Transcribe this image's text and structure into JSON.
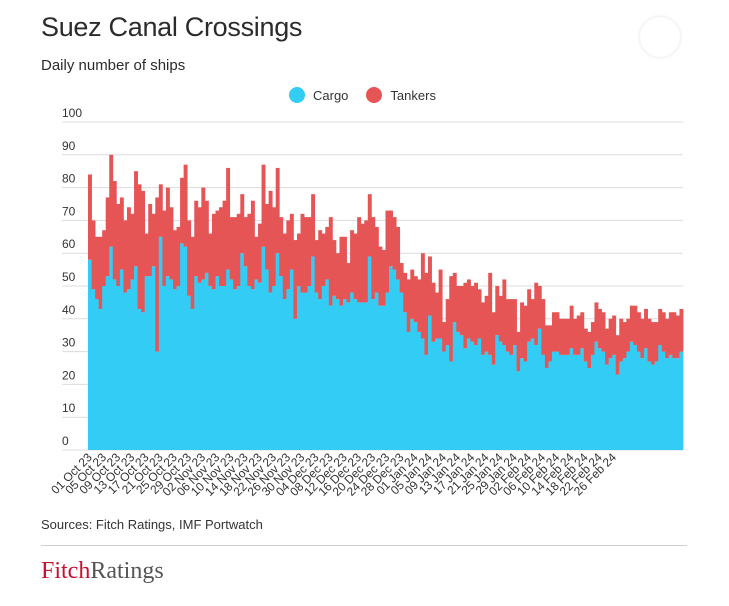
{
  "title": "Suez Canal Crossings",
  "subtitle": "Daily number of ships",
  "legend": [
    {
      "name": "Cargo",
      "color": "#33ccf5"
    },
    {
      "name": "Tankers",
      "color": "#e65555"
    }
  ],
  "source": "Sources: Fitch Ratings, IMF Portwatch",
  "logo": {
    "part1": "Fitch",
    "part2": "Ratings"
  },
  "chart_data": {
    "type": "bar",
    "stacked": true,
    "start_date": "2023-10-01",
    "end_date": "2024-02-26",
    "ylim": [
      0,
      100
    ],
    "yticks": [
      0,
      10,
      20,
      30,
      40,
      50,
      60,
      70,
      80,
      90,
      100
    ],
    "xticks": [
      "01 Oct 23",
      "05 Oct 23",
      "09 Oct 23",
      "13 Oct 23",
      "17 Oct 23",
      "21 Oct 23",
      "25 Oct 23",
      "29 Oct 23",
      "02 Nov 23",
      "06 Nov 23",
      "10 Nov 23",
      "14 Nov 23",
      "18 Nov 23",
      "22 Nov 23",
      "26 Nov 23",
      "30 Nov 23",
      "04 Dec 23",
      "08 Dec 23",
      "12 Dec 23",
      "16 Dec 23",
      "20 Dec 23",
      "24 Dec 23",
      "28 Dec 23",
      "01 Jan 24",
      "05 Jan 24",
      "09 Jan 24",
      "13 Jan 24",
      "17 Jan 24",
      "21 Jan 24",
      "25 Jan 24",
      "29 Jan 24",
      "02 Feb 24",
      "06 Feb 24",
      "10 Feb 24",
      "14 Feb 24",
      "18 Feb 24",
      "22 Feb 24",
      "26 Feb 24"
    ],
    "grid": true,
    "legend_position": "top-center",
    "series": [
      {
        "name": "Cargo",
        "color": "#33ccf5",
        "values": [
          58,
          49,
          46,
          43,
          50,
          53,
          62,
          52,
          50,
          55,
          48,
          49,
          52,
          56,
          43,
          42,
          53,
          53,
          56,
          30,
          65,
          50,
          53,
          52,
          49,
          50,
          63,
          62,
          47,
          43,
          53,
          51,
          52,
          54,
          50,
          49,
          53,
          50,
          50,
          55,
          52,
          49,
          50,
          60,
          56,
          50,
          49,
          52,
          51,
          62,
          55,
          48,
          50,
          60,
          53,
          46,
          49,
          55,
          40,
          50,
          48,
          48,
          50,
          59,
          48,
          46,
          50,
          52,
          44,
          47,
          46,
          44,
          46,
          45,
          48,
          46,
          45,
          45,
          45,
          59,
          46,
          48,
          44,
          44,
          48,
          56,
          55,
          52,
          48,
          42,
          36,
          40,
          39,
          36,
          34,
          29,
          41,
          33,
          34,
          34,
          30,
          32,
          27,
          39,
          36,
          35,
          31,
          34,
          33,
          32,
          34,
          29,
          30,
          29,
          26,
          35,
          33,
          32,
          30,
          29,
          32,
          24,
          28,
          27,
          33,
          34,
          32,
          37,
          29,
          25,
          27,
          30,
          30,
          29,
          29,
          29,
          31,
          29,
          29,
          31,
          27,
          25,
          29,
          33,
          31,
          30,
          26,
          28,
          29,
          23,
          27,
          28,
          30,
          33,
          32,
          30,
          28,
          31,
          27,
          26,
          27,
          32,
          30,
          28,
          29,
          28,
          28,
          30
        ]
      },
      {
        "name": "Tankers",
        "color": "#e65555",
        "values": [
          26,
          21,
          19,
          22,
          17,
          24,
          28,
          30,
          25,
          22,
          22,
          25,
          20,
          29,
          38,
          37,
          13,
          22,
          16,
          47,
          16,
          23,
          27,
          22,
          18,
          18,
          20,
          25,
          23,
          22,
          23,
          23,
          28,
          22,
          16,
          23,
          20,
          24,
          26,
          31,
          19,
          22,
          22,
          18,
          15,
          22,
          27,
          13,
          18,
          25,
          20,
          31,
          24,
          26,
          18,
          20,
          21,
          17,
          24,
          16,
          24,
          23,
          21,
          19,
          16,
          21,
          16,
          16,
          27,
          17,
          14,
          21,
          19,
          12,
          19,
          20,
          26,
          24,
          25,
          19,
          25,
          20,
          18,
          17,
          25,
          17,
          16,
          16,
          9,
          12,
          16,
          15,
          14,
          16,
          26,
          25,
          18,
          18,
          14,
          21,
          9,
          14,
          26,
          15,
          14,
          15,
          20,
          18,
          17,
          19,
          15,
          16,
          17,
          25,
          16,
          15,
          14,
          20,
          16,
          17,
          14,
          12,
          17,
          17,
          16,
          12,
          19,
          13,
          17,
          13,
          11,
          12,
          12,
          11,
          11,
          11,
          13,
          11,
          12,
          11,
          10,
          11,
          10,
          12,
          12,
          12,
          11,
          12,
          12,
          12,
          13,
          11,
          10,
          11,
          12,
          12,
          12,
          12,
          13,
          13,
          12,
          11,
          12,
          12,
          13,
          14,
          13,
          13
        ]
      }
    ]
  }
}
